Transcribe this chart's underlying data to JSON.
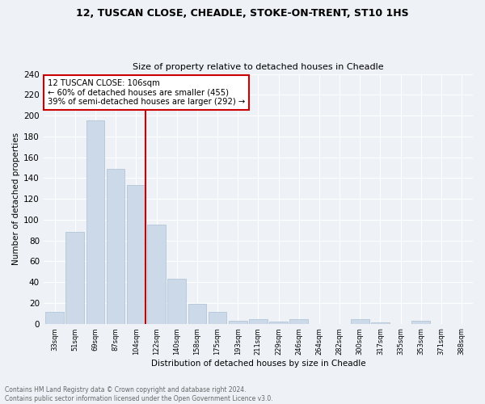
{
  "title1": "12, TUSCAN CLOSE, CHEADLE, STOKE-ON-TRENT, ST10 1HS",
  "title2": "Size of property relative to detached houses in Cheadle",
  "xlabel": "Distribution of detached houses by size in Cheadle",
  "ylabel": "Number of detached properties",
  "bar_labels": [
    "33sqm",
    "51sqm",
    "69sqm",
    "87sqm",
    "104sqm",
    "122sqm",
    "140sqm",
    "158sqm",
    "175sqm",
    "193sqm",
    "211sqm",
    "229sqm",
    "246sqm",
    "264sqm",
    "282sqm",
    "300sqm",
    "317sqm",
    "335sqm",
    "353sqm",
    "371sqm",
    "388sqm"
  ],
  "bar_values": [
    11,
    88,
    195,
    149,
    133,
    95,
    43,
    19,
    11,
    3,
    4,
    2,
    4,
    0,
    0,
    4,
    1,
    0,
    3,
    0,
    0
  ],
  "bar_color": "#ccd9e8",
  "bar_edgecolor": "#aabfd4",
  "vline_x_idx": 4,
  "vline_color": "#cc0000",
  "annotation_title": "12 TUSCAN CLOSE: 106sqm",
  "annotation_line1": "← 60% of detached houses are smaller (455)",
  "annotation_line2": "39% of semi-detached houses are larger (292) →",
  "annotation_box_color": "#cc0000",
  "ylim": [
    0,
    240
  ],
  "yticks": [
    0,
    20,
    40,
    60,
    80,
    100,
    120,
    140,
    160,
    180,
    200,
    220,
    240
  ],
  "footnote1": "Contains HM Land Registry data © Crown copyright and database right 2024.",
  "footnote2": "Contains public sector information licensed under the Open Government Licence v3.0.",
  "bg_color": "#eef2f7",
  "grid_color": "#ffffff"
}
